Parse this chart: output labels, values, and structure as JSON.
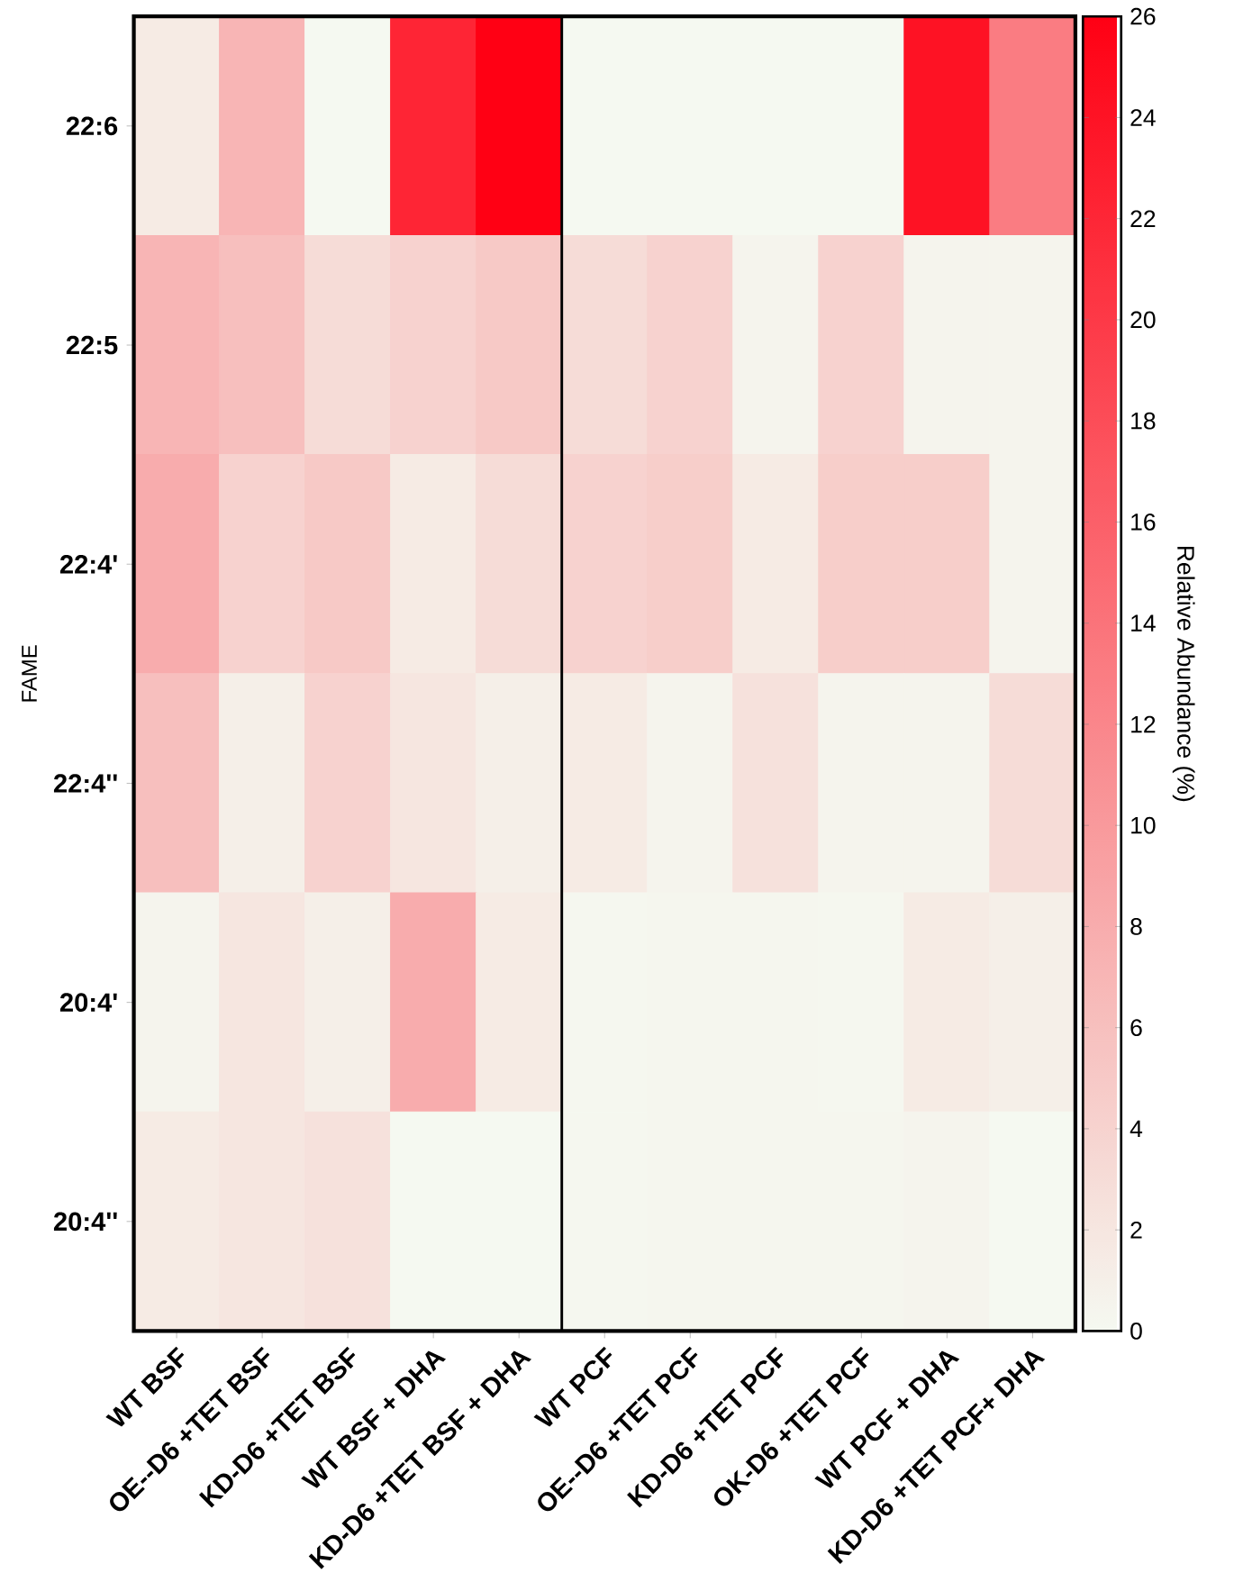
{
  "chart_data": {
    "type": "heatmap",
    "ylabel": "FAME",
    "clabel": "Relative Abundance (%)",
    "categories": [
      "WT BSF",
      "OE--D6 +TET BSF",
      "KD-D6 +TET BSF",
      "WT BSF + DHA",
      "KD-D6 +TET BSF + DHA",
      "WT PCF",
      "OE--D6 +TET PCF",
      "KD-D6 +TET PCF",
      "OK-D6 +TET PCF",
      "WT PCF + DHA",
      "KD-D6 +TET PCF+ DHA"
    ],
    "y_categories": [
      "22:6",
      "22:5",
      "22:4'",
      "22:4''",
      "20:4'",
      "20:4''"
    ],
    "cells": [
      [
        1.5,
        7,
        0,
        22,
        26,
        0,
        0,
        0,
        0,
        24,
        13
      ],
      [
        7,
        6,
        3,
        4,
        5,
        3,
        4,
        0.5,
        4,
        0.5,
        0.5
      ],
      [
        8,
        4,
        5,
        1.5,
        3,
        4,
        4.5,
        1.5,
        4.5,
        4.5,
        0.5
      ],
      [
        6,
        1,
        4,
        2,
        1,
        1.5,
        0.5,
        2.5,
        0.5,
        0.5,
        3
      ],
      [
        0.5,
        2,
        1,
        8,
        1.5,
        0.2,
        0.3,
        0.3,
        0.2,
        1.5,
        1
      ],
      [
        1.5,
        2,
        2.5,
        0,
        0,
        0.2,
        0.3,
        0.3,
        0.3,
        0.5,
        0
      ]
    ],
    "clim": [
      0,
      26
    ],
    "cticks": [
      0,
      2,
      4,
      6,
      8,
      10,
      12,
      14,
      16,
      18,
      20,
      22,
      24,
      26
    ],
    "colors": [
      "#f5f9f1",
      "#ff0014"
    ]
  }
}
